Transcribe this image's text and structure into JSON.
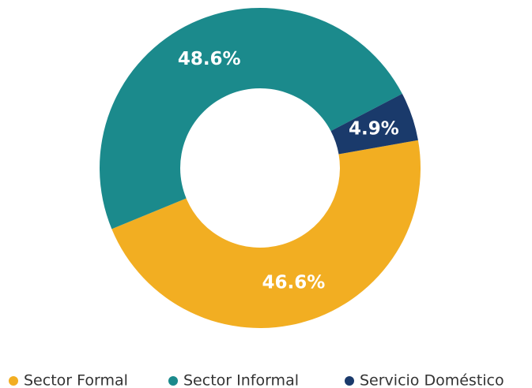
{
  "chart_data": {
    "type": "donut",
    "categories": [
      "Sector Formal",
      "Sector Informal",
      "Servicio Doméstico"
    ],
    "values": [
      46.6,
      48.6,
      4.9
    ],
    "value_labels": [
      "46.6%",
      "48.6%",
      "4.9%"
    ],
    "colors": [
      "#f2ae22",
      "#1b8a8c",
      "#1a3a6b"
    ],
    "legend": "bottom"
  }
}
